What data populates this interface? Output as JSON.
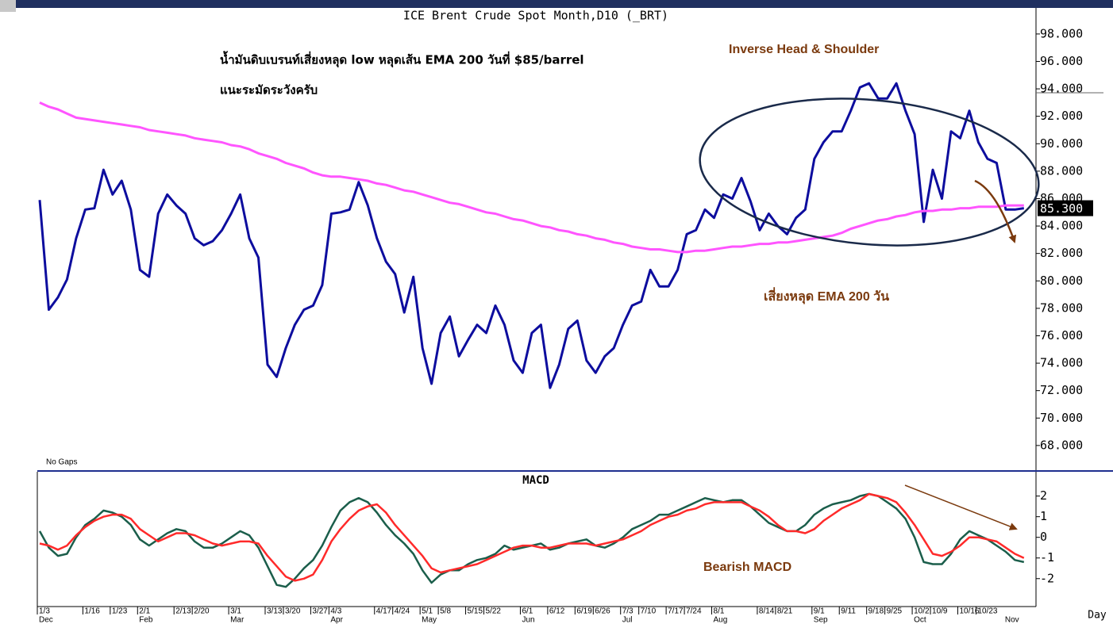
{
  "chart_data": [
    {
      "type": "line",
      "title": "ICE Brent Crude Spot Month,D10 (_BRT)",
      "annotations": [
        "น้ำมันดิบเบรนท์เสี่ยงหลุด low หลุดเส้น EMA 200 วันที่ $85/barrel",
        "แนะระมัดระวังครับ",
        "Inverse Head & Shoulder",
        "เสี่ยงหลุด EMA 200 วัน"
      ],
      "footnote": "No Gaps",
      "ylim": [
        66.2,
        99.9
      ],
      "yticks": [
        {
          "value": 68,
          "label": "68.000"
        },
        {
          "value": 70,
          "label": "70.000"
        },
        {
          "value": 72,
          "label": "72.000"
        },
        {
          "value": 74,
          "label": "74.000"
        },
        {
          "value": 76,
          "label": "76.000"
        },
        {
          "value": 78,
          "label": "78.000"
        },
        {
          "value": 80,
          "label": "80.000"
        },
        {
          "value": 82,
          "label": "82.000"
        },
        {
          "value": 84,
          "label": "84.000"
        },
        {
          "value": 86,
          "label": "86.000"
        },
        {
          "value": 88,
          "label": "88.000"
        },
        {
          "value": 90,
          "label": "90.000"
        },
        {
          "value": 92,
          "label": "92.000"
        },
        {
          "value": 94,
          "label": "94.000"
        },
        {
          "value": 96,
          "label": "96.000"
        },
        {
          "value": 98,
          "label": "98.000"
        }
      ],
      "last_price": {
        "value": 85.3,
        "label": "85.300"
      },
      "series": [
        {
          "color": "#0d0d9e",
          "values": [
            85.9,
            77.9,
            78.8,
            80.1,
            83.1,
            85.2,
            85.3,
            88.1,
            86.3,
            87.3,
            85.2,
            80.8,
            80.3,
            84.9,
            86.3,
            85.5,
            84.9,
            83.1,
            82.6,
            82.9,
            83.7,
            84.9,
            86.3,
            83.1,
            81.7,
            73.9,
            73.0,
            75.1,
            76.8,
            77.9,
            78.2,
            79.7,
            84.9,
            85.0,
            85.2,
            87.2,
            85.5,
            83.1,
            81.4,
            80.5,
            77.7,
            80.3,
            75.1,
            72.5,
            76.2,
            77.4,
            74.5,
            75.7,
            76.8,
            76.2,
            78.2,
            76.8,
            74.2,
            73.3,
            76.2,
            76.8,
            72.2,
            73.9,
            76.5,
            77.1,
            74.2,
            73.3,
            74.5,
            75.1,
            76.8,
            78.2,
            78.5,
            80.8,
            79.6,
            79.6,
            80.8,
            83.4,
            83.7,
            85.2,
            84.6,
            86.3,
            86.0,
            87.5,
            85.8,
            83.7,
            84.9,
            84.0,
            83.4,
            84.6,
            85.2,
            88.9,
            90.1,
            90.9,
            90.9,
            92.4,
            94.1,
            94.4,
            93.3,
            93.3,
            94.4,
            92.4,
            90.7,
            84.3,
            88.1,
            86.0,
            90.9,
            90.4,
            92.4,
            90.1,
            88.9,
            88.6,
            85.2,
            85.2,
            85.3
          ]
        },
        {
          "color": "#ff55ff",
          "values": [
            93.0,
            92.7,
            92.5,
            92.2,
            91.9,
            91.8,
            91.7,
            91.6,
            91.5,
            91.4,
            91.3,
            91.2,
            91.0,
            90.9,
            90.8,
            90.7,
            90.6,
            90.4,
            90.3,
            90.2,
            90.1,
            89.9,
            89.8,
            89.6,
            89.3,
            89.1,
            88.9,
            88.6,
            88.4,
            88.2,
            87.9,
            87.7,
            87.6,
            87.6,
            87.5,
            87.4,
            87.3,
            87.1,
            87.0,
            86.8,
            86.6,
            86.5,
            86.3,
            86.1,
            85.9,
            85.7,
            85.6,
            85.4,
            85.2,
            85.0,
            84.9,
            84.7,
            84.5,
            84.4,
            84.2,
            84.0,
            83.9,
            83.7,
            83.6,
            83.4,
            83.3,
            83.1,
            83.0,
            82.8,
            82.7,
            82.5,
            82.4,
            82.3,
            82.3,
            82.2,
            82.1,
            82.1,
            82.2,
            82.2,
            82.3,
            82.4,
            82.5,
            82.5,
            82.6,
            82.7,
            82.7,
            82.8,
            82.8,
            82.9,
            83.0,
            83.1,
            83.2,
            83.3,
            83.5,
            83.8,
            84.0,
            84.2,
            84.4,
            84.5,
            84.7,
            84.8,
            85.0,
            85.1,
            85.1,
            85.2,
            85.2,
            85.3,
            85.3,
            85.4,
            85.4,
            85.4,
            85.5,
            85.5,
            85.5
          ]
        }
      ]
    },
    {
      "type": "line",
      "title": "MACD",
      "annotations": [
        "Bearish MACD"
      ],
      "x_label": "Day",
      "ylim": [
        -3.2,
        3.1
      ],
      "yticks": [
        -2,
        -1,
        0,
        1,
        2
      ],
      "categories": [
        "1/3",
        null,
        null,
        null,
        null,
        "1/16",
        null,
        null,
        "1/23",
        null,
        null,
        "2/1",
        null,
        null,
        null,
        "2/13",
        null,
        "2/20",
        null,
        null,
        null,
        "3/1",
        null,
        null,
        null,
        "3/13",
        null,
        "3/20",
        null,
        null,
        "3/27",
        null,
        "4/3",
        null,
        null,
        null,
        null,
        "4/17",
        null,
        "4/24",
        null,
        null,
        "5/1",
        null,
        "5/8",
        null,
        null,
        "5/15",
        null,
        "5/22",
        null,
        null,
        null,
        "6/1",
        null,
        null,
        "6/12",
        null,
        null,
        "6/19",
        null,
        "6/26",
        null,
        null,
        "7/3",
        null,
        "7/10",
        null,
        null,
        "7/17",
        null,
        "7/24",
        null,
        null,
        "8/1",
        null,
        null,
        null,
        null,
        "8/14",
        null,
        "8/21",
        null,
        null,
        null,
        "9/1",
        null,
        null,
        "9/11",
        null,
        null,
        "9/18",
        null,
        "9/25",
        null,
        null,
        "10/2",
        null,
        "10/9",
        null,
        null,
        "10/16",
        null,
        "10/23",
        null,
        null,
        null,
        null,
        null
      ],
      "month_labels": [
        "Dec",
        null,
        null,
        null,
        null,
        null,
        null,
        null,
        null,
        null,
        null,
        "Feb",
        null,
        null,
        null,
        null,
        null,
        null,
        null,
        null,
        null,
        "Mar",
        null,
        null,
        null,
        null,
        null,
        null,
        null,
        null,
        null,
        null,
        "Apr",
        null,
        null,
        null,
        null,
        null,
        null,
        null,
        null,
        null,
        "May",
        null,
        null,
        null,
        null,
        null,
        null,
        null,
        null,
        null,
        null,
        "Jun",
        null,
        null,
        null,
        null,
        null,
        null,
        null,
        null,
        null,
        null,
        "Jul",
        null,
        null,
        null,
        null,
        null,
        null,
        null,
        null,
        null,
        "Aug",
        null,
        null,
        null,
        null,
        null,
        null,
        null,
        null,
        null,
        null,
        "Sep",
        null,
        null,
        null,
        null,
        null,
        null,
        null,
        null,
        null,
        null,
        "Oct",
        null,
        null,
        null,
        null,
        null,
        null,
        null,
        null,
        null,
        "Nov",
        null,
        null
      ],
      "series": [
        {
          "color": "#1b5e4b",
          "values": [
            0.3,
            -0.5,
            -0.9,
            -0.8,
            0.0,
            0.6,
            0.9,
            1.3,
            1.2,
            1.0,
            0.6,
            -0.1,
            -0.4,
            -0.1,
            0.2,
            0.4,
            0.3,
            -0.2,
            -0.5,
            -0.5,
            -0.3,
            0.0,
            0.3,
            0.1,
            -0.5,
            -1.4,
            -2.3,
            -2.4,
            -2.0,
            -1.5,
            -1.1,
            -0.4,
            0.5,
            1.3,
            1.7,
            1.9,
            1.7,
            1.2,
            0.6,
            0.1,
            -0.3,
            -0.8,
            -1.6,
            -2.2,
            -1.8,
            -1.6,
            -1.6,
            -1.3,
            -1.1,
            -1.0,
            -0.8,
            -0.4,
            -0.6,
            -0.5,
            -0.4,
            -0.3,
            -0.6,
            -0.5,
            -0.3,
            -0.2,
            -0.1,
            -0.4,
            -0.5,
            -0.3,
            0.0,
            0.4,
            0.6,
            0.8,
            1.1,
            1.1,
            1.3,
            1.5,
            1.7,
            1.9,
            1.8,
            1.7,
            1.8,
            1.8,
            1.5,
            1.1,
            0.7,
            0.5,
            0.3,
            0.3,
            0.6,
            1.1,
            1.4,
            1.6,
            1.7,
            1.8,
            2.0,
            2.1,
            2.0,
            1.7,
            1.4,
            0.9,
            0.0,
            -1.2,
            -1.3,
            -1.3,
            -0.8,
            -0.1,
            0.3,
            0.1,
            -0.1,
            -0.4,
            -0.7,
            -1.1,
            -1.2
          ]
        },
        {
          "color": "#ff2a2a",
          "values": [
            -0.3,
            -0.4,
            -0.6,
            -0.4,
            0.1,
            0.5,
            0.8,
            1.0,
            1.1,
            1.1,
            0.9,
            0.4,
            0.1,
            -0.2,
            0.0,
            0.2,
            0.2,
            0.1,
            -0.1,
            -0.3,
            -0.4,
            -0.3,
            -0.2,
            -0.2,
            -0.3,
            -0.9,
            -1.4,
            -1.9,
            -2.1,
            -2.0,
            -1.8,
            -1.1,
            -0.2,
            0.4,
            0.9,
            1.3,
            1.5,
            1.6,
            1.2,
            0.6,
            0.1,
            -0.4,
            -0.9,
            -1.5,
            -1.7,
            -1.6,
            -1.5,
            -1.4,
            -1.3,
            -1.1,
            -0.9,
            -0.7,
            -0.5,
            -0.4,
            -0.4,
            -0.5,
            -0.5,
            -0.4,
            -0.3,
            -0.3,
            -0.3,
            -0.4,
            -0.3,
            -0.2,
            -0.1,
            0.1,
            0.3,
            0.6,
            0.8,
            1.0,
            1.1,
            1.3,
            1.4,
            1.6,
            1.7,
            1.7,
            1.7,
            1.7,
            1.5,
            1.3,
            1.0,
            0.6,
            0.3,
            0.3,
            0.2,
            0.4,
            0.8,
            1.1,
            1.4,
            1.6,
            1.8,
            2.1,
            2.0,
            1.9,
            1.7,
            1.2,
            0.6,
            -0.1,
            -0.8,
            -0.9,
            -0.7,
            -0.4,
            0.0,
            0.0,
            -0.1,
            -0.2,
            -0.5,
            -0.8,
            -1.0
          ]
        }
      ]
    }
  ]
}
